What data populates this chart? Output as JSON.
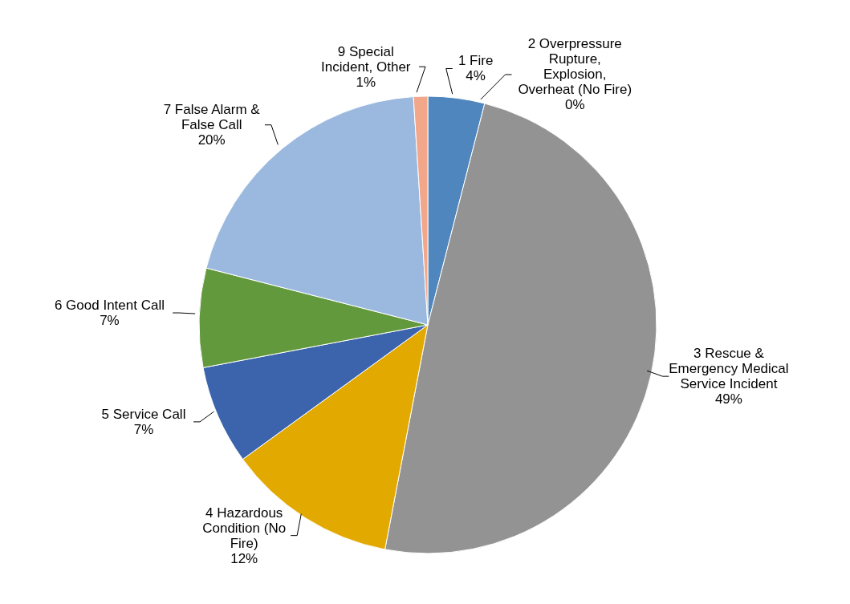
{
  "chart_data": {
    "type": "pie",
    "categories": [
      "1 Fire",
      "2 Overpressure Rupture, Explosion, Overheat (No Fire)",
      "3 Rescue & Emergency Medical Service Incident",
      "4 Hazardous Condition (No Fire)",
      "5 Service Call",
      "6 Good Intent Call",
      "7 False Alarm & False Call",
      "9 Special Incident, Other"
    ],
    "values": [
      4,
      0,
      49,
      12,
      7,
      7,
      20,
      1
    ],
    "value_labels": [
      "4%",
      "0%",
      "49%",
      "12%",
      "7%",
      "7%",
      "20%",
      "1%"
    ],
    "colors": [
      "#4f86bd",
      "#d8682a",
      "#939393",
      "#e2a900",
      "#3b64ad",
      "#63993d",
      "#9bb9df",
      "#f2a68a"
    ]
  }
}
